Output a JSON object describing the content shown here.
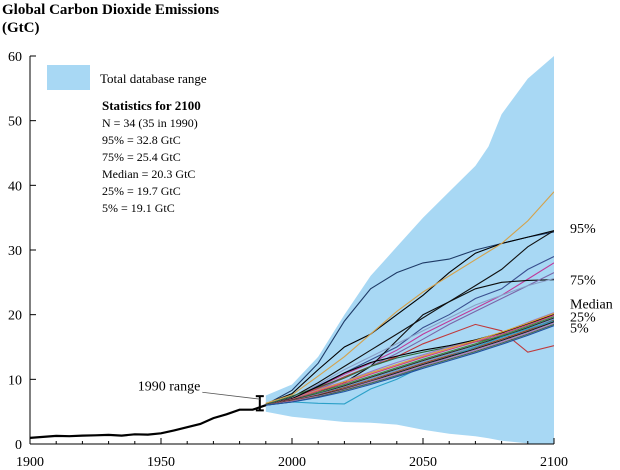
{
  "chart_data": {
    "type": "line",
    "title": "Global Carbon Dioxide Emissions",
    "ylabel": "(GtC)",
    "xlim": [
      1900,
      2100
    ],
    "ylim": [
      0,
      60
    ],
    "xticks": [
      "1900",
      "1950",
      "2000",
      "2050",
      "2100"
    ],
    "yticks": [
      "0",
      "10",
      "20",
      "30",
      "40",
      "50",
      "60"
    ],
    "legend": {
      "range_label": "Total database range"
    },
    "stats": {
      "heading": "Statistics for 2100",
      "lines": [
        "N = 34  (35 in 1990)",
        "95% = 32.8 GtC",
        "75% = 25.4 GtC",
        "Median = 20.3 GtC",
        "25% = 19.7 GtC",
        "5% = 19.1 GtC"
      ]
    },
    "annotation_1990": "1990 range",
    "range_1990": [
      5.2,
      7.4
    ],
    "percentile_labels": [
      {
        "label": "95%",
        "value": 32.8
      },
      {
        "label": "75%",
        "value": 25.4
      },
      {
        "label": "Median",
        "value": 21.7
      },
      {
        "label": "25%",
        "value": 19.7
      },
      {
        "label": "5%",
        "value": 18.3
      }
    ],
    "database_range": {
      "x": [
        1990,
        2000,
        2010,
        2020,
        2030,
        2040,
        2050,
        2060,
        2070,
        2075,
        2080,
        2090,
        2100
      ],
      "upper": [
        7.5,
        9.2,
        13.5,
        20.0,
        26.0,
        30.5,
        35.0,
        39.0,
        43.0,
        46.0,
        51.0,
        56.5,
        60.0
      ],
      "lower": [
        5.0,
        4.2,
        3.8,
        3.4,
        3.3,
        3.0,
        2.2,
        1.6,
        1.2,
        0.9,
        0.5,
        0.1,
        -0.5
      ]
    },
    "historical": {
      "x": [
        1900,
        1905,
        1910,
        1915,
        1920,
        1925,
        1930,
        1935,
        1940,
        1945,
        1950,
        1955,
        1960,
        1965,
        1970,
        1975,
        1980,
        1985,
        1990
      ],
      "y": [
        0.95,
        1.1,
        1.25,
        1.2,
        1.3,
        1.35,
        1.4,
        1.3,
        1.5,
        1.45,
        1.65,
        2.1,
        2.6,
        3.1,
        4.0,
        4.6,
        5.3,
        5.3,
        6.0
      ]
    },
    "scenario_x": [
      1990,
      2000,
      2010,
      2020,
      2030,
      2040,
      2050,
      2060,
      2070,
      2080,
      2090,
      2100
    ],
    "series": [
      {
        "color": "#1e3a66",
        "values": [
          6.1,
          8.3,
          12.5,
          19.0,
          24.0,
          26.5,
          28.0,
          28.6,
          30.0,
          31.0,
          32.0,
          32.8
        ]
      },
      {
        "color": "#000000",
        "values": [
          6.2,
          7.8,
          11.5,
          15.0,
          17.0,
          20.0,
          23.0,
          26.5,
          29.5,
          31.0,
          32.0,
          33.0
        ]
      },
      {
        "color": "#d4a24c",
        "values": [
          6.3,
          7.6,
          10.5,
          13.5,
          17.0,
          20.5,
          23.5,
          26.0,
          28.5,
          31.0,
          34.5,
          39.0
        ]
      },
      {
        "color": "#111111",
        "values": [
          6.0,
          7.2,
          9.5,
          12.0,
          14.5,
          17.0,
          19.5,
          22.0,
          24.5,
          27.0,
          30.5,
          33.0
        ]
      },
      {
        "color": "#3a4f8f",
        "values": [
          6.0,
          7.0,
          9.0,
          11.0,
          13.0,
          15.0,
          18.0,
          20.0,
          22.5,
          24.0,
          27.0,
          29.0
        ]
      },
      {
        "color": "#c03a9a",
        "values": [
          6.0,
          7.0,
          8.8,
          10.8,
          12.5,
          14.5,
          17.0,
          19.0,
          21.0,
          23.0,
          25.5,
          28.0
        ]
      },
      {
        "color": "#0d0d0d",
        "values": [
          6.0,
          6.8,
          8.0,
          9.5,
          12.0,
          16.0,
          20.0,
          22.0,
          24.0,
          25.0,
          25.3,
          25.4
        ]
      },
      {
        "color": "#7a66a8",
        "values": [
          6.0,
          6.9,
          8.4,
          10.2,
          12.0,
          14.0,
          16.2,
          18.5,
          20.5,
          22.5,
          24.5,
          26.5
        ]
      },
      {
        "color": "#8aa0c8",
        "values": [
          6.0,
          7.1,
          9.2,
          11.5,
          13.5,
          15.5,
          17.5,
          19.5,
          21.5,
          23.0,
          24.5,
          25.6
        ]
      },
      {
        "color": "#c0393b",
        "values": [
          6.1,
          7.0,
          8.6,
          10.4,
          12.0,
          13.5,
          15.5,
          17.0,
          18.5,
          17.5,
          14.2,
          15.2
        ]
      },
      {
        "color": "#2f6b3a",
        "values": [
          6.1,
          7.4,
          8.8,
          10.2,
          12.0,
          13.3,
          14.2,
          15.0,
          15.8,
          16.6,
          17.8,
          19.2
        ]
      },
      {
        "color": "#9a7bc4",
        "values": [
          6.0,
          7.0,
          8.4,
          9.7,
          11.2,
          12.6,
          13.8,
          15.0,
          16.0,
          17.2,
          18.8,
          20.3
        ]
      },
      {
        "color": "#000000",
        "values": [
          6.0,
          7.0,
          8.9,
          11.0,
          12.6,
          13.6,
          14.5,
          15.2,
          16.1,
          17.2,
          18.6,
          20.0
        ]
      },
      {
        "color": "#e0a030",
        "values": [
          6.0,
          6.9,
          8.3,
          9.6,
          11.0,
          12.3,
          13.6,
          14.8,
          16.0,
          17.3,
          18.7,
          20.2
        ]
      },
      {
        "color": "#d0407a",
        "values": [
          6.0,
          6.9,
          8.2,
          9.4,
          10.8,
          12.1,
          13.4,
          14.6,
          15.8,
          17.0,
          18.4,
          19.9
        ]
      },
      {
        "color": "#3f8a3f",
        "values": [
          6.0,
          6.8,
          8.0,
          9.2,
          10.5,
          11.8,
          13.1,
          14.3,
          15.5,
          16.8,
          18.2,
          19.7
        ]
      },
      {
        "color": "#2a2a2a",
        "values": [
          6.0,
          6.8,
          7.8,
          9.0,
          10.3,
          11.6,
          12.9,
          14.1,
          15.3,
          16.6,
          18.0,
          19.5
        ]
      },
      {
        "color": "#6a9ad0",
        "values": [
          6.0,
          6.7,
          7.7,
          8.8,
          10.1,
          11.4,
          12.7,
          13.9,
          15.1,
          16.4,
          17.8,
          19.3
        ]
      },
      {
        "color": "#9a4b2b",
        "values": [
          6.0,
          6.7,
          7.6,
          8.7,
          9.9,
          11.2,
          12.5,
          13.7,
          14.9,
          16.2,
          17.6,
          19.1
        ]
      },
      {
        "color": "#2ba0c8",
        "values": [
          6.0,
          6.5,
          6.3,
          6.2,
          8.5,
          10.0,
          12.0,
          13.5,
          15.0,
          16.5,
          17.8,
          19.0
        ]
      },
      {
        "color": "#1a1a1a",
        "values": [
          6.0,
          6.6,
          7.5,
          8.5,
          9.7,
          11.0,
          12.3,
          13.5,
          14.7,
          16.0,
          17.4,
          18.9
        ]
      },
      {
        "color": "#b07ac0",
        "values": [
          6.0,
          6.6,
          7.4,
          8.4,
          9.6,
          10.8,
          12.1,
          13.3,
          14.5,
          15.8,
          17.2,
          18.7
        ]
      },
      {
        "color": "#4a6a4a",
        "values": [
          6.0,
          6.5,
          7.3,
          8.3,
          9.4,
          10.6,
          11.9,
          13.1,
          14.3,
          15.6,
          17.0,
          18.5
        ]
      },
      {
        "color": "#2050a0",
        "values": [
          6.0,
          6.5,
          7.2,
          8.1,
          9.2,
          10.4,
          11.7,
          12.9,
          14.1,
          15.4,
          16.8,
          18.3
        ]
      }
    ]
  }
}
